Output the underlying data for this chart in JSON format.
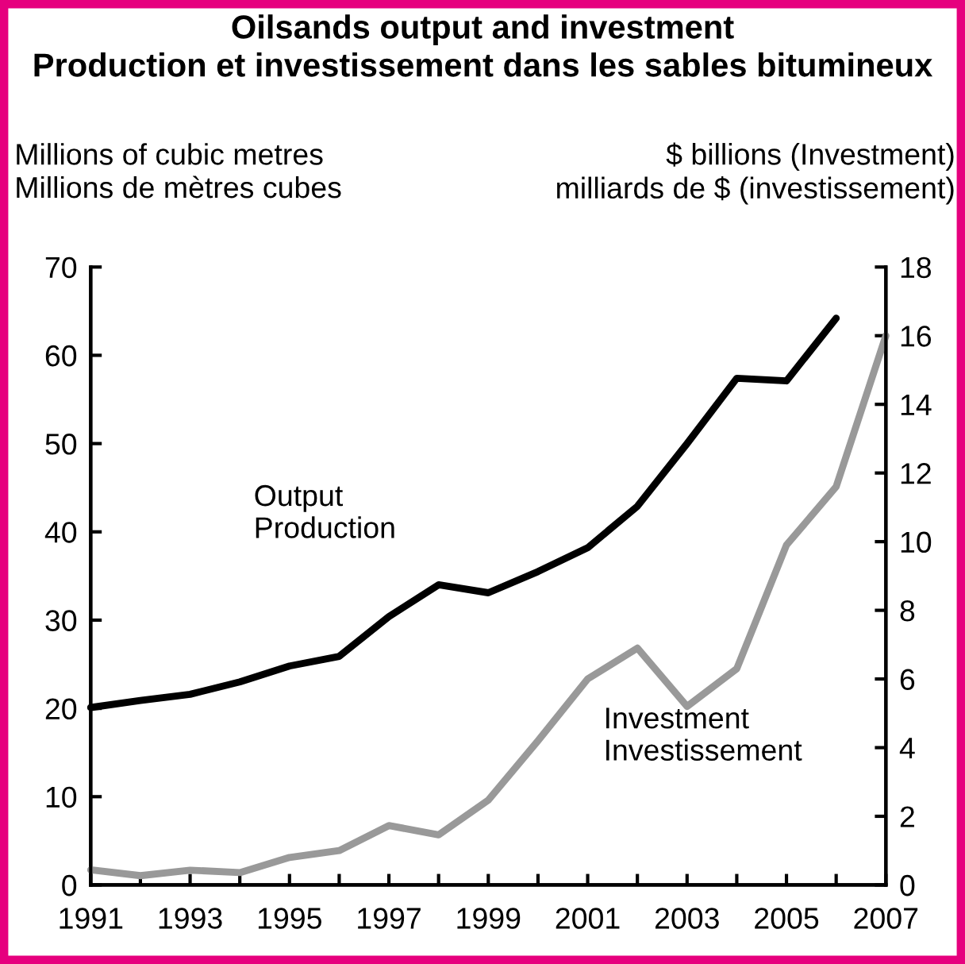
{
  "chart_data": {
    "type": "line",
    "title": "Oilsands output and investment\nProduction et investissement dans les sables bitumineux",
    "ylabel": "Millions of cubic metres\nMillions de mètres cubes",
    "y2label": "$ billions (Investment)\nmilliards de $ (investissement)",
    "x": [
      1991,
      1992,
      1993,
      1994,
      1995,
      1996,
      1997,
      1998,
      1999,
      2000,
      2001,
      2002,
      2003,
      2004,
      2005,
      2006,
      2007
    ],
    "series": [
      {
        "name": "Output\nProduction",
        "color": "#000000",
        "values": [
          20.1,
          20.9,
          21.6,
          23.0,
          24.8,
          25.9,
          30.4,
          34.0,
          33.1,
          35.5,
          38.2,
          42.9,
          50.0,
          57.4,
          57.1,
          64.2,
          null
        ]
      },
      {
        "name": "Investment\nInvestissement",
        "color": "#999999",
        "axis": "y2",
        "values": [
          0.44,
          0.27,
          0.43,
          0.36,
          0.8,
          1.0,
          1.73,
          1.46,
          2.47,
          4.2,
          6.0,
          6.9,
          5.2,
          6.3,
          9.9,
          11.6,
          16.0
        ]
      }
    ],
    "xlim": [
      1991,
      2007
    ],
    "xticks": [
      1991,
      {
        "value": 1992,
        "label": null
      },
      1993,
      {
        "value": 1994,
        "label": null
      },
      1995,
      {
        "value": 1996,
        "label": null
      },
      1997,
      {
        "value": 1998,
        "label": null
      },
      1999,
      {
        "value": 2000,
        "label": null
      },
      2001,
      {
        "value": 2002,
        "label": null
      },
      2003,
      {
        "value": 2004,
        "label": null
      },
      2005,
      {
        "value": 2006,
        "label": null
      },
      2007
    ],
    "ylim": [
      0,
      70
    ],
    "yticks": [
      0,
      10,
      20,
      30,
      40,
      50,
      60,
      70
    ],
    "y2lim": [
      0,
      18
    ],
    "y2ticks": [
      0,
      2,
      4,
      6,
      8,
      10,
      12,
      14,
      16,
      18
    ],
    "grid": false,
    "legend": false,
    "marker": "none",
    "line_style": "solid"
  }
}
